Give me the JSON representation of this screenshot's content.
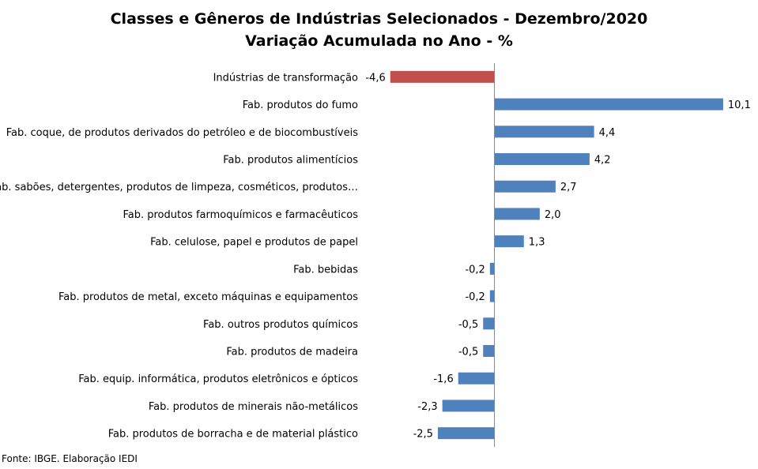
{
  "chart_data": {
    "type": "bar",
    "orientation": "horizontal",
    "title": "Classes e Gêneros de Indústrias Selecionados - Dezembro/2020",
    "subtitle": "Variação Acumulada no Ano - %",
    "categories": [
      "Indústrias de transformação",
      "Fab. produtos do fumo",
      "Fab. coque, de produtos derivados do petróleo e de biocombustíveis",
      "Fab. produtos alimentícios",
      "Fab. sabões, detergentes, produtos de limpeza, cosméticos, produtos…",
      "Fab. produtos farmoquímicos e farmacêuticos",
      "Fab. celulose, papel e produtos de papel",
      "Fab. bebidas",
      "Fab. produtos de metal, exceto máquinas e equipamentos",
      "Fab. outros produtos químicos",
      "Fab. produtos de madeira",
      "Fab. equip. informática, produtos eletrônicos e ópticos",
      "Fab. produtos de minerais não-metálicos",
      "Fab. produtos de borracha e de material plástico"
    ],
    "values": [
      -4.6,
      10.1,
      4.4,
      4.2,
      2.7,
      2.0,
      1.3,
      -0.2,
      -0.2,
      -0.5,
      -0.5,
      -1.6,
      -2.3,
      -2.5
    ],
    "value_labels": [
      "-4,6",
      "10,1",
      "4,4",
      "4,2",
      "2,7",
      "2,0",
      "1,3",
      "-0,2",
      "-0,2",
      "-0,5",
      "-0,5",
      "-1,6",
      "-2,3",
      "-2,5"
    ],
    "xlim": [
      -5.5,
      11.5
    ],
    "colors": {
      "highlight": "#c0504d",
      "default": "#4f81bd",
      "axis": "#868686"
    },
    "highlight_index": 0
  },
  "source": "Fonte: IBGE. Elaboração IEDI"
}
